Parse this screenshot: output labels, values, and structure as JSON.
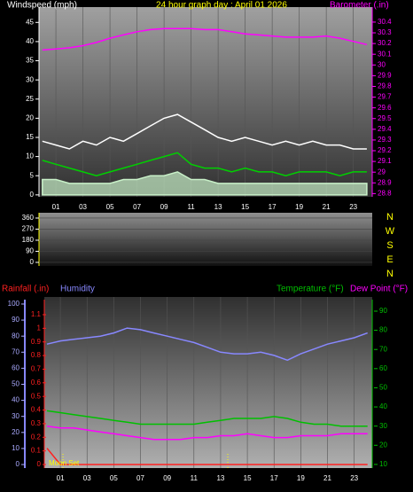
{
  "chart_data": [
    {
      "type": "line",
      "title": "24 hour graph day : April 01 2026",
      "x": [
        0,
        1,
        2,
        3,
        4,
        5,
        6,
        7,
        8,
        9,
        10,
        11,
        12,
        13,
        14,
        15,
        16,
        17,
        18,
        19,
        20,
        21,
        22,
        23,
        24
      ],
      "xlim": [
        -0.25,
        24.4
      ],
      "xticks": [
        {
          "value": 1,
          "label": "01"
        },
        {
          "value": 3,
          "label": "03"
        },
        {
          "value": 5,
          "label": "05"
        },
        {
          "value": 7,
          "label": "07"
        },
        {
          "value": 9,
          "label": "09"
        },
        {
          "value": 11,
          "label": "11"
        },
        {
          "value": 13,
          "label": "13"
        },
        {
          "value": 15,
          "label": "15"
        },
        {
          "value": 17,
          "label": "17"
        },
        {
          "value": 19,
          "label": "19"
        },
        {
          "value": 21,
          "label": "21"
        },
        {
          "value": 23,
          "label": "23"
        }
      ],
      "ylim": [
        -0.5,
        49
      ],
      "yticks": [
        0,
        5,
        10,
        15,
        20,
        25,
        30,
        35,
        40,
        45
      ],
      "y2lim": [
        28.77,
        30.54
      ],
      "y2ticks": [
        28.8,
        28.9,
        29,
        29.1,
        29.2,
        29.3,
        29.4,
        29.5,
        29.6,
        29.7,
        29.8,
        29.9,
        30,
        30.1,
        30.2,
        30.3,
        30.4
      ],
      "series": [
        {
          "name": "Windspeed (mph)",
          "color": "#ffffff",
          "values": [
            14,
            13,
            12,
            14,
            13,
            15,
            14,
            16,
            18,
            20,
            21,
            19,
            17,
            15,
            14,
            15,
            14,
            13,
            14,
            13,
            14,
            13,
            13,
            12,
            12
          ]
        },
        {
          "color": "#c8f0c8",
          "area": true,
          "values": [
            4,
            4,
            3,
            3,
            3,
            3,
            4,
            4,
            5,
            5,
            6,
            4,
            4,
            3,
            3,
            3,
            3,
            3,
            3,
            3,
            3,
            3,
            3,
            3,
            3
          ]
        },
        {
          "color": "#00d000",
          "values": [
            9,
            8,
            7,
            6,
            5,
            6,
            7,
            8,
            9,
            10,
            11,
            8,
            7,
            7,
            6,
            7,
            6,
            6,
            5,
            6,
            6,
            6,
            5,
            6,
            6
          ]
        },
        {
          "name": "Barometer (.in)",
          "color": "#ff00ff",
          "axis": "y2",
          "values": [
            30.14,
            30.15,
            30.16,
            30.18,
            30.21,
            30.25,
            30.28,
            30.31,
            30.33,
            30.34,
            30.34,
            30.34,
            30.33,
            30.33,
            30.31,
            30.29,
            30.28,
            30.27,
            30.26,
            30.26,
            30.26,
            30.27,
            30.25,
            30.22,
            30.19
          ]
        }
      ]
    },
    {
      "type": "direction",
      "ylim": [
        -29,
        403
      ],
      "yticks": [
        0,
        90,
        180,
        270,
        360
      ],
      "direction_labels": [
        "N",
        "W",
        "S",
        "E",
        "N"
      ]
    },
    {
      "type": "line",
      "x": [
        0,
        1,
        2,
        3,
        4,
        5,
        6,
        7,
        8,
        9,
        10,
        11,
        12,
        13,
        14,
        15,
        16,
        17,
        18,
        19,
        20,
        21,
        22,
        23,
        24
      ],
      "xlim": [
        -0.2,
        24.35
      ],
      "xticks": [
        {
          "value": 1,
          "label": "01"
        },
        {
          "value": 3,
          "label": "03"
        },
        {
          "value": 5,
          "label": "05"
        },
        {
          "value": 7,
          "label": "07"
        },
        {
          "value": 9,
          "label": "09"
        },
        {
          "value": 11,
          "label": "11"
        },
        {
          "value": 13,
          "label": "13"
        },
        {
          "value": 15,
          "label": "15"
        },
        {
          "value": 17,
          "label": "17"
        },
        {
          "value": 19,
          "label": "19"
        },
        {
          "value": 21,
          "label": "21"
        },
        {
          "value": 23,
          "label": "23"
        }
      ],
      "ylim": [
        -2.2,
        104.4
      ],
      "yticks": [
        0,
        10,
        20,
        30,
        40,
        50,
        60,
        70,
        80,
        90,
        100
      ],
      "y2lim": [
        8.1,
        97.4
      ],
      "y2ticks": [
        10,
        20,
        30,
        40,
        50,
        60,
        70,
        80,
        90
      ],
      "y3lim": [
        -0.026,
        1.23
      ],
      "y3ticks": [
        0,
        0.1,
        0.2,
        0.3,
        0.4,
        0.5,
        0.6,
        0.7,
        0.8,
        0.9,
        1,
        1.1
      ],
      "annotations": [
        {
          "text": "Moon Set",
          "x": 0
        }
      ],
      "series": [
        {
          "name": "Rainfall (.in)",
          "color": "#ff2020",
          "axis": "y3",
          "values": [
            0.12,
            0,
            0,
            0,
            0,
            0,
            0,
            0,
            0,
            0,
            0,
            0,
            0,
            0,
            0,
            0,
            0,
            0,
            0,
            0,
            0,
            0,
            0,
            0,
            0
          ]
        },
        {
          "name": "Humidity",
          "color": "#8888ff",
          "values": [
            75,
            77,
            78,
            79,
            80,
            82,
            85,
            84,
            82,
            80,
            78,
            76,
            73,
            70,
            69,
            69,
            70,
            68,
            65,
            69,
            72,
            75,
            77,
            79,
            82
          ]
        },
        {
          "name": "Temperature (°F)",
          "color": "#00c000",
          "axis": "y2",
          "values": [
            38,
            37,
            36,
            35,
            34,
            33,
            32,
            31,
            31,
            31,
            31,
            31,
            32,
            33,
            34,
            34,
            34,
            35,
            34,
            32,
            31,
            31,
            30,
            30,
            30
          ]
        },
        {
          "name": "Dew Point (°F)",
          "color": "#ff00ff",
          "axis": "y2",
          "values": [
            30,
            29,
            29,
            28,
            27,
            26,
            25,
            24,
            23,
            23,
            23,
            24,
            24,
            25,
            25,
            26,
            25,
            24,
            24,
            25,
            25,
            25,
            26,
            26,
            26
          ]
        }
      ]
    }
  ]
}
